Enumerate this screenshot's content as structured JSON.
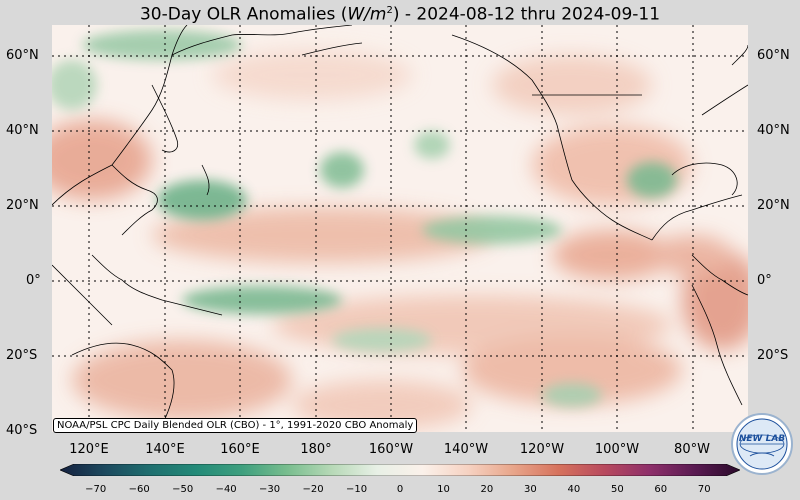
{
  "title": "30-Day OLR Anomalies (W/m²) - 2024-08-12 thru 2024-09-11",
  "title_parts": {
    "prefix": "30-Day OLR Anomalies (",
    "unit_base": "W/m",
    "unit_exp": "2",
    "suffix": ") - 2024-08-12 thru 2024-09-11"
  },
  "lat_labels": [
    "60°N",
    "40°N",
    "20°N",
    "0°",
    "20°S",
    "40°S"
  ],
  "lon_labels": [
    "120°E",
    "140°E",
    "160°E",
    "180°",
    "160°W",
    "140°W",
    "120°W",
    "100°W",
    "80°W"
  ],
  "source_note": "NOAA/PSL CPC Daily Blended OLR (CBO) - 1°, 1991-2020 CBO Anomaly",
  "colorbar": {
    "ticks": [
      "−70",
      "−60",
      "−50",
      "−40",
      "−30",
      "−20",
      "−10",
      "0",
      "10",
      "20",
      "30",
      "40",
      "50",
      "60",
      "70"
    ],
    "range": [
      -75,
      75
    ],
    "colors": [
      "#15203f",
      "#1d4a5f",
      "#1f6f6f",
      "#238a78",
      "#3e9f7e",
      "#78bd8e",
      "#b7d9b7",
      "#e8f0e6",
      "#fbf1ea",
      "#f6d2c2",
      "#e8a58a",
      "#d6725d",
      "#b84a5e",
      "#8e2f6a",
      "#5a1b52",
      "#2a0a2a"
    ]
  },
  "logo": {
    "text": "NEW LAB",
    "color": "#1b4f9c"
  },
  "colors": {
    "ocean": "#faf2ee",
    "positive": "#e8a58a",
    "negative": "#6fb48c",
    "gridline": "#000000"
  }
}
